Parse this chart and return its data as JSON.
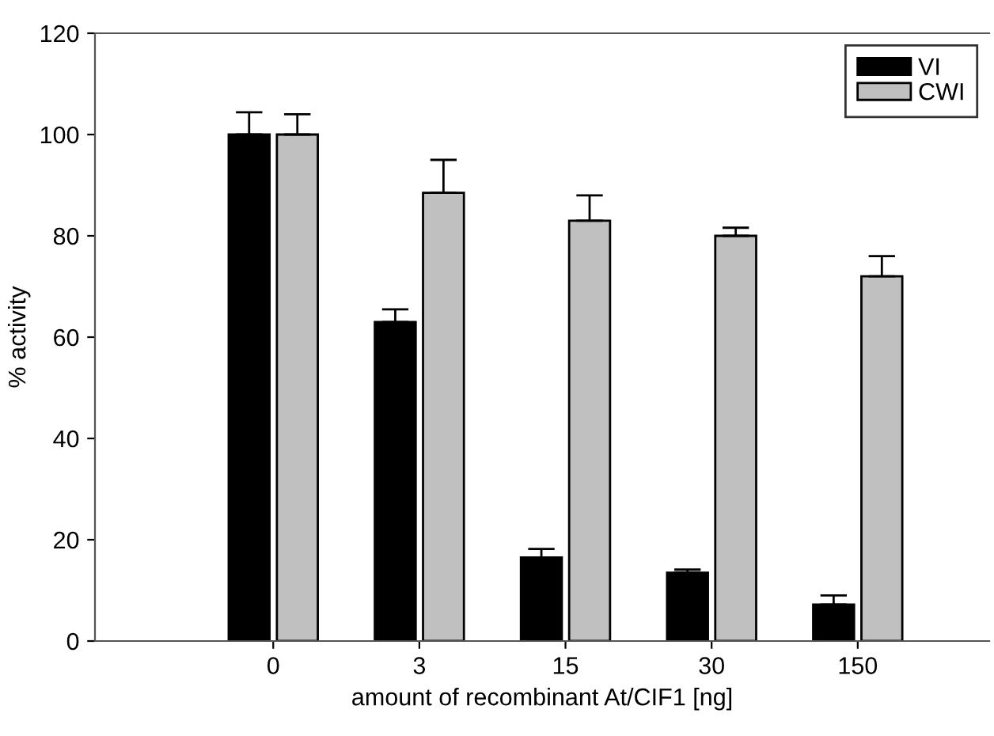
{
  "chart_data": {
    "type": "bar",
    "xlabel": "amount of recombinant At/CIF1 [ng]",
    "ylabel": "% activity",
    "categories": [
      "0",
      "3",
      "15",
      "30",
      "150"
    ],
    "series": [
      {
        "name": "VI",
        "color": "#000000",
        "values": [
          100,
          63,
          16.5,
          13.5,
          7.2
        ],
        "errors": [
          [
            100,
            104.4
          ],
          [
            63,
            65.5
          ],
          [
            16.5,
            18.2
          ],
          [
            13.5,
            14.1
          ],
          [
            7.2,
            9
          ]
        ]
      },
      {
        "name": "CWI",
        "color": "#c0c0c0",
        "values": [
          100,
          88.5,
          83,
          80,
          72
        ],
        "errors": [
          [
            100,
            104
          ],
          [
            88.5,
            95
          ],
          [
            83,
            88
          ],
          [
            80,
            81.6
          ],
          [
            72,
            76
          ]
        ]
      }
    ],
    "ylim": [
      0,
      120
    ],
    "yticks": [
      0,
      20,
      40,
      60,
      80,
      100,
      120
    ],
    "grid": false,
    "legend": "top right"
  }
}
